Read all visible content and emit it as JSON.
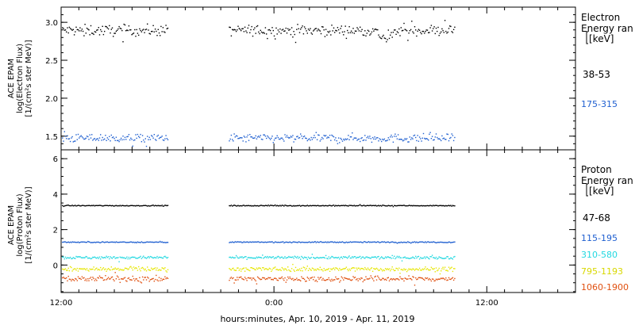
{
  "xaxis_title": "hours:minutes, Apr. 10, 2019 - Apr. 11, 2019",
  "x_ticks": [
    {
      "label": "12:00",
      "hour": 0
    },
    {
      "label": "0:00",
      "hour": 12
    },
    {
      "label": "12:00",
      "hour": 24
    }
  ],
  "x_minor_step_hours": 1,
  "chart_data": [
    {
      "type": "scatter",
      "panel": "electron",
      "ylabel_lines": [
        "ACE EPAM",
        "log(Electron Flux)",
        "[1/(cm²s ster MeV)]"
      ],
      "x_range_hours": [
        0,
        29
      ],
      "ylim": [
        1.32,
        3.2
      ],
      "y_ticks": [
        1.5,
        2.0,
        2.5,
        3.0
      ],
      "y_tick_labels": [
        "1.5",
        "2.0",
        "2.5",
        "3.0"
      ],
      "y_minor_step": 0.1,
      "gap_hours": [
        6.0,
        9.4
      ],
      "data_end_hour": 22.2,
      "legend_title": [
        "Electron",
        "Energy ran",
        "[keV]"
      ],
      "series": [
        {
          "name": "38-53",
          "color": "#000000",
          "mean": 2.9,
          "spread": 0.07,
          "dip_hour": 18.3,
          "dip_depth": 0.12
        },
        {
          "name": "175-315",
          "color": "#1f5fd0",
          "mean": 1.48,
          "spread": 0.055,
          "dip_hour": null,
          "dip_depth": 0
        }
      ]
    },
    {
      "type": "scatter",
      "panel": "proton",
      "ylabel_lines": [
        "ACE EPAM",
        "log(Proton Flux)",
        "[1/(cm²s ster MeV)]"
      ],
      "x_range_hours": [
        0,
        29
      ],
      "ylim": [
        -1.55,
        6.5
      ],
      "y_ticks": [
        0,
        2,
        4,
        6
      ],
      "y_tick_labels": [
        "0",
        "2",
        "4",
        "6"
      ],
      "y_minor_step": 0.5,
      "gap_hours": [
        6.0,
        9.4
      ],
      "data_end_hour": 22.2,
      "legend_title": [
        "Proton",
        "Energy ran",
        "[keV]"
      ],
      "series": [
        {
          "name": "47-68",
          "color": "#000000",
          "mean": 3.38,
          "spread": 0.025,
          "dip_hour": null,
          "dip_depth": 0
        },
        {
          "name": "115-195",
          "color": "#1f5fd0",
          "mean": 1.32,
          "spread": 0.03,
          "dip_hour": null,
          "dip_depth": 0
        },
        {
          "name": "310-580",
          "color": "#22d8e0",
          "mean": 0.45,
          "spread": 0.08,
          "dip_hour": null,
          "dip_depth": 0
        },
        {
          "name": "795-1193",
          "color": "#e6e600",
          "mean": -0.2,
          "spread": 0.12,
          "dip_hour": null,
          "dip_depth": 0
        },
        {
          "name": "1060-1900",
          "color": "#e05010",
          "mean": -0.75,
          "spread": 0.15,
          "dip_hour": null,
          "dip_depth": 0
        }
      ]
    }
  ]
}
